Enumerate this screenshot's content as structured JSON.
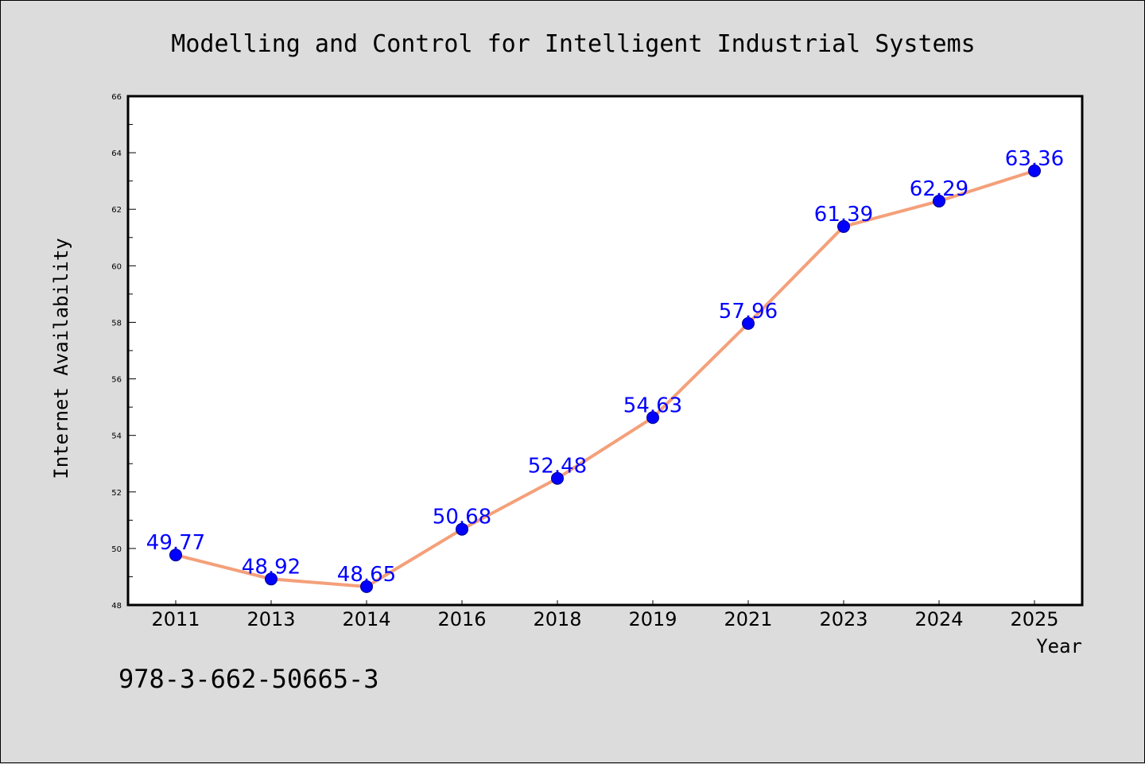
{
  "chart_data": {
    "type": "line",
    "title": "Modelling and Control for Intelligent Industrial Systems",
    "xlabel": "Year",
    "ylabel": "Internet Availability",
    "categories": [
      "2011",
      "2013",
      "2014",
      "2016",
      "2018",
      "2019",
      "2021",
      "2023",
      "2024",
      "2025"
    ],
    "series": [
      {
        "values": [
          49.77,
          48.92,
          48.65,
          50.68,
          52.48,
          54.63,
          57.96,
          61.39,
          62.29,
          63.36
        ],
        "data_labels": [
          "49.77",
          "48.92",
          "48.65",
          "50.68",
          "52.48",
          "54.63",
          "57.96",
          "61.39",
          "62.29",
          "63.36"
        ]
      }
    ],
    "ylim": [
      48,
      66
    ],
    "yticks": [
      "48",
      "50",
      "52",
      "54",
      "56",
      "58",
      "60",
      "62",
      "64",
      "66"
    ],
    "grid": false,
    "colors": {
      "line": "#f4a07a",
      "marker_fill": "#0000ff",
      "marker_edge": "#00008b",
      "label": "#0000ff",
      "background": "#dcdcdc",
      "plot_area": "#ffffff"
    }
  },
  "footnote": "978-3-662-50665-3"
}
